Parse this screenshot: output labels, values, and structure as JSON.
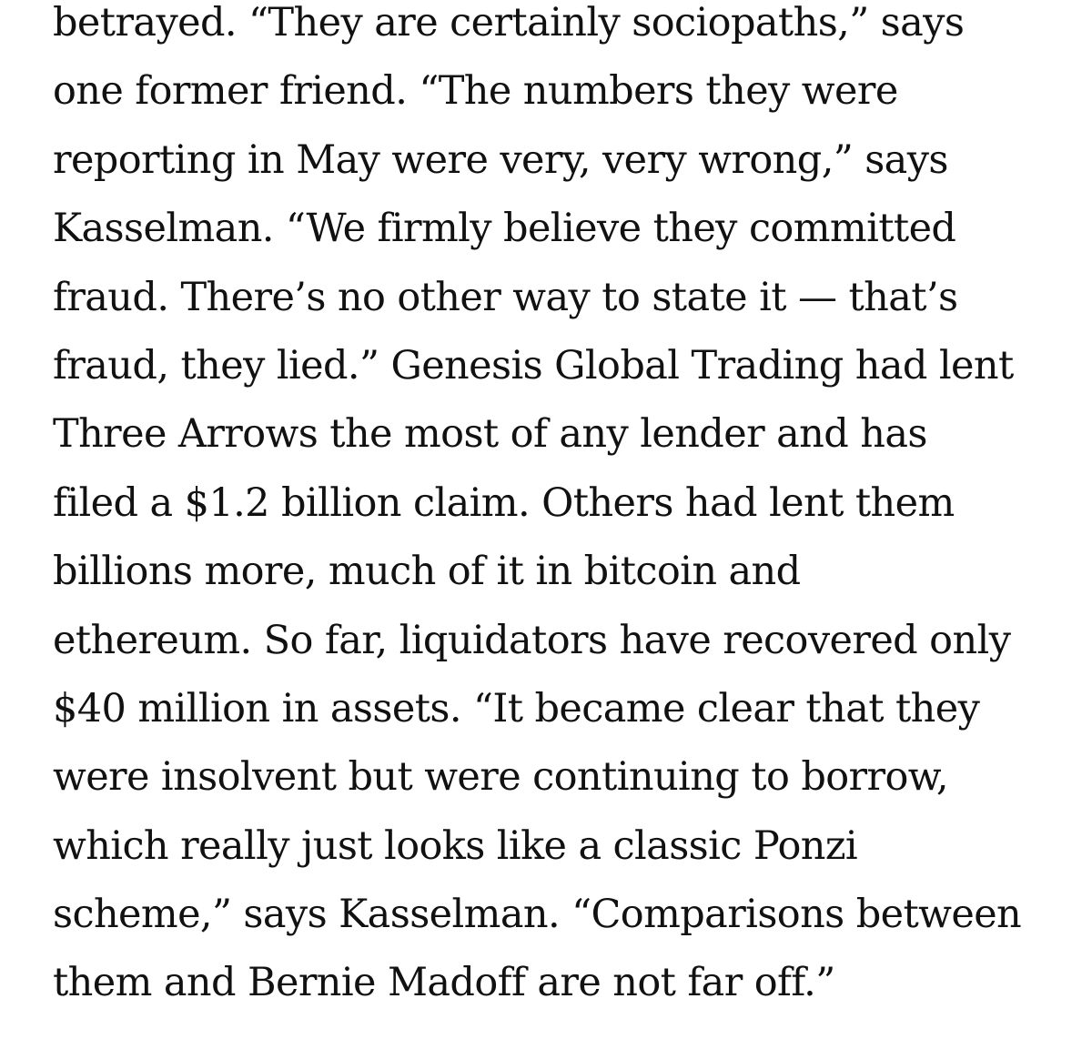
{
  "article": {
    "lines": [
      "betrayed. “They are certainly sociopaths,” says",
      "one former friend. “The numbers they were",
      "reporting in May were very, very wrong,” says",
      "Kasselman. “We firmly believe they committed",
      "fraud. There’s no other way to state it — that’s",
      "fraud, they lied.” Genesis Global Trading had lent",
      "Three Arrows the most of any lender and has",
      "filed a $1.2 billion claim. Others had lent them",
      "billions more, much of it in bitcoin and",
      "ethereum. So far, liquidators have recovered only",
      "$40 million in assets. “It became clear that they",
      "were insolvent but were continuing to borrow,",
      "which really just looks like a classic Ponzi",
      "scheme,” says Kasselman. “Comparisons between",
      "them and Bernie Madoff are not far off.”"
    ]
  }
}
